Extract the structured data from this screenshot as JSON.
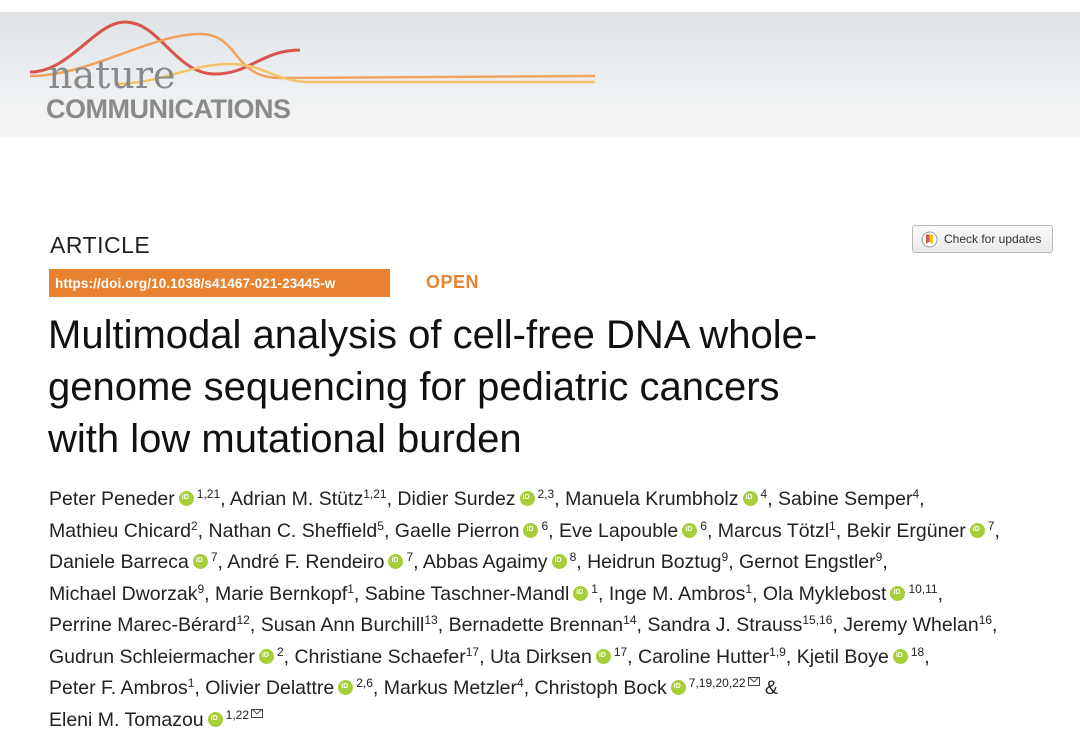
{
  "header": {
    "logo_word1": "nature",
    "logo_word2": "COMMUNICATIONS"
  },
  "article": {
    "type_label": "ARTICLE",
    "check_updates_label": "Check for updates",
    "doi": "https://doi.org/10.1038/s41467-021-23445-w",
    "access_label": "OPEN",
    "title_lines": [
      "Multimodal analysis of cell-free DNA whole-",
      "genome sequencing for pediatric cancers",
      "with low mutational burden"
    ]
  },
  "authors": [
    {
      "name": "Peter Peneder",
      "orcid": true,
      "aff": "1,21",
      "sep": ", "
    },
    {
      "name": "Adrian M. Stütz",
      "orcid": false,
      "aff": "1,21",
      "sep": ", "
    },
    {
      "name": "Didier Surdez",
      "orcid": true,
      "aff": "2,3",
      "sep": ", "
    },
    {
      "name": "Manuela Krumbholz",
      "orcid": true,
      "aff": "4",
      "sep": ", "
    },
    {
      "name": "Sabine Semper",
      "orcid": false,
      "aff": "4",
      "sep": ","
    },
    {
      "name": "Mathieu Chicard",
      "orcid": false,
      "aff": "2",
      "sep": ", "
    },
    {
      "name": "Nathan C. Sheffield",
      "orcid": false,
      "aff": "5",
      "sep": ", "
    },
    {
      "name": "Gaelle Pierron",
      "orcid": true,
      "aff": "6",
      "sep": ", "
    },
    {
      "name": "Eve Lapouble",
      "orcid": true,
      "aff": "6",
      "sep": ", "
    },
    {
      "name": "Marcus Tötzl",
      "orcid": false,
      "aff": "1",
      "sep": ", "
    },
    {
      "name": "Bekir Ergüner",
      "orcid": true,
      "aff": "7",
      "sep": ","
    },
    {
      "name": "Daniele Barreca",
      "orcid": true,
      "aff": "7",
      "sep": ", "
    },
    {
      "name": "André F. Rendeiro",
      "orcid": true,
      "aff": "7",
      "sep": ", "
    },
    {
      "name": "Abbas Agaimy",
      "orcid": true,
      "aff": "8",
      "sep": ", "
    },
    {
      "name": "Heidrun Boztug",
      "orcid": false,
      "aff": "9",
      "sep": ", "
    },
    {
      "name": "Gernot Engstler",
      "orcid": false,
      "aff": "9",
      "sep": ","
    },
    {
      "name": "Michael Dworzak",
      "orcid": false,
      "aff": "9",
      "sep": ", "
    },
    {
      "name": "Marie Bernkopf",
      "orcid": false,
      "aff": "1",
      "sep": ", "
    },
    {
      "name": "Sabine Taschner-Mandl",
      "orcid": true,
      "aff": "1",
      "sep": ", "
    },
    {
      "name": "Inge M. Ambros",
      "orcid": false,
      "aff": "1",
      "sep": ", "
    },
    {
      "name": "Ola Myklebost",
      "orcid": true,
      "aff": "10,11",
      "sep": ","
    },
    {
      "name": "Perrine Marec-Bérard",
      "orcid": false,
      "aff": "12",
      "sep": ", "
    },
    {
      "name": "Susan Ann Burchill",
      "orcid": false,
      "aff": "13",
      "sep": ", "
    },
    {
      "name": "Bernadette Brennan",
      "orcid": false,
      "aff": "14",
      "sep": ", "
    },
    {
      "name": "Sandra J. Strauss",
      "orcid": false,
      "aff": "15,16",
      "sep": ", "
    },
    {
      "name": "Jeremy Whelan",
      "orcid": false,
      "aff": "16",
      "sep": ","
    },
    {
      "name": "Gudrun Schleiermacher",
      "orcid": true,
      "aff": "2",
      "sep": ", "
    },
    {
      "name": "Christiane Schaefer",
      "orcid": false,
      "aff": "17",
      "sep": ", "
    },
    {
      "name": "Uta Dirksen",
      "orcid": true,
      "aff": "17",
      "sep": ", "
    },
    {
      "name": "Caroline Hutter",
      "orcid": false,
      "aff": "1,9",
      "sep": ", "
    },
    {
      "name": "Kjetil Boye",
      "orcid": true,
      "aff": "18",
      "sep": ","
    },
    {
      "name": "Peter F. Ambros",
      "orcid": false,
      "aff": "1",
      "sep": ", "
    },
    {
      "name": "Olivier Delattre",
      "orcid": true,
      "aff": "2,6",
      "sep": ", "
    },
    {
      "name": "Markus Metzler",
      "orcid": false,
      "aff": "4",
      "sep": ", "
    },
    {
      "name": "Christoph Bock",
      "orcid": true,
      "aff": "7,19,20,22",
      "mail": true,
      "sep": " &"
    },
    {
      "name": "Eleni M. Tomazou",
      "orcid": true,
      "aff": "1,22",
      "mail": true,
      "sep": ""
    }
  ],
  "author_lines": [
    [
      0,
      4
    ],
    [
      5,
      10
    ],
    [
      11,
      15
    ],
    [
      16,
      20
    ],
    [
      21,
      25
    ],
    [
      26,
      30
    ],
    [
      31,
      34
    ],
    [
      35,
      35
    ]
  ]
}
